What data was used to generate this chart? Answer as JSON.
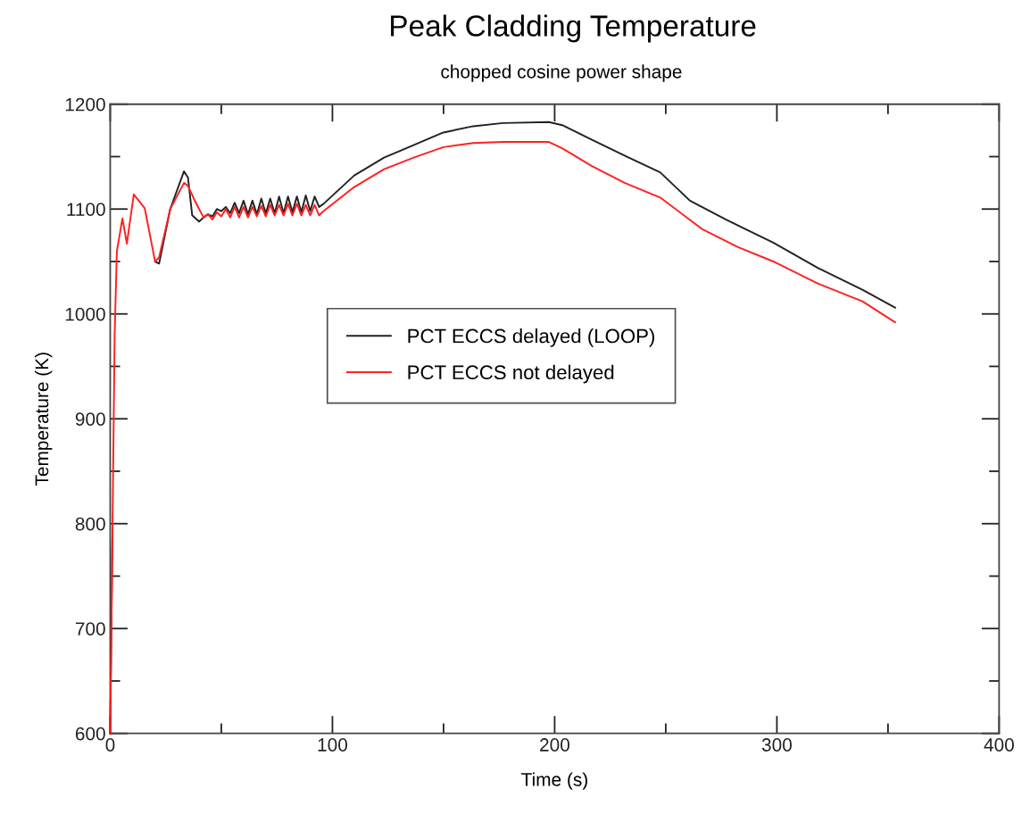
{
  "chart_data": {
    "type": "line",
    "title": "Peak Cladding Temperature",
    "subtitle": "chopped cosine power shape",
    "xlabel": "Time (s)",
    "ylabel": "Temperature (K)",
    "xlim": [
      0,
      400
    ],
    "ylim": [
      600,
      1200
    ],
    "xticks": [
      0,
      100,
      200,
      300,
      400
    ],
    "yticks": [
      600,
      700,
      800,
      900,
      1000,
      1100,
      1200
    ],
    "grid": false,
    "legend": "center",
    "marker": "none",
    "line_style": "solid",
    "series": [
      {
        "name": "PCT ECCS delayed (LOOP)",
        "color": "#222222",
        "x": [
          0,
          1,
          2,
          3,
          5.5,
          7.5,
          10.6,
          15.5,
          20.2,
          22,
          27,
          33.2,
          35,
          36.9,
          40,
          42,
          44,
          46,
          48,
          50,
          52,
          54,
          56,
          58,
          60,
          62,
          64,
          66,
          68,
          70,
          72,
          74,
          76,
          78,
          80,
          82,
          84,
          86,
          88,
          90,
          92,
          94,
          96,
          109.8,
          123.2,
          136.5,
          149.9,
          163.3,
          176.7,
          197.4,
          203.4,
          216.8,
          231.5,
          247.5,
          260.9,
          277,
          298.4,
          318.4,
          338.5,
          353.2
        ],
        "values": [
          600,
          790,
          null,
          null,
          null,
          null,
          null,
          null,
          1050,
          1048,
          1100,
          1136,
          1130,
          1094,
          1088,
          1092,
          1095,
          1093,
          1100,
          1098,
          1102,
          1096,
          1106,
          1096,
          1108,
          1095,
          1108,
          1095,
          1110,
          1096,
          1110,
          1096,
          1112,
          1096,
          1112,
          1097,
          1112,
          1097,
          1113,
          1098,
          1112,
          1102,
          1105,
          1132,
          1149,
          1161,
          1173,
          1179,
          1182,
          1183,
          1180,
          1166,
          1151,
          1135,
          1108,
          1090,
          1068,
          1044,
          1023,
          1006
        ]
      },
      {
        "name": "PCT ECCS not delayed",
        "color": "#ff2020",
        "x": [
          0,
          1,
          2,
          3,
          5.5,
          7.5,
          10.6,
          15.5,
          20.2,
          22,
          27,
          33.2,
          35,
          38.3,
          40,
          42,
          44,
          46,
          48,
          50,
          52,
          54,
          56,
          58,
          60,
          62,
          64,
          66,
          68,
          70,
          72,
          74,
          76,
          78,
          80,
          82,
          84,
          86,
          88,
          90,
          92,
          94,
          96,
          109.8,
          123.2,
          136.5,
          149.9,
          163.3,
          176.7,
          197.4,
          203.4,
          216.8,
          231.5,
          247.5,
          266.3,
          282.3,
          298.4,
          318.4,
          338.5,
          353.2
        ],
        "values": [
          600,
          790,
          980,
          1060,
          1091,
          1067,
          1114,
          1101,
          1050,
          1054,
          1100,
          1125,
          1122,
          1107,
          1100,
          1092,
          1095,
          1090,
          1097,
          1093,
          1100,
          1092,
          1102,
          1092,
          1102,
          1092,
          1102,
          1093,
          1103,
          1093,
          1104,
          1094,
          1104,
          1094,
          1105,
          1094,
          1105,
          1094,
          1104,
          1094,
          1104,
          1094,
          1098,
          1121,
          1138,
          1149,
          1159,
          1163,
          1164,
          1164,
          1158,
          1141,
          1125,
          1111,
          1081,
          1064,
          1050,
          1029,
          1012,
          992
        ]
      }
    ]
  }
}
